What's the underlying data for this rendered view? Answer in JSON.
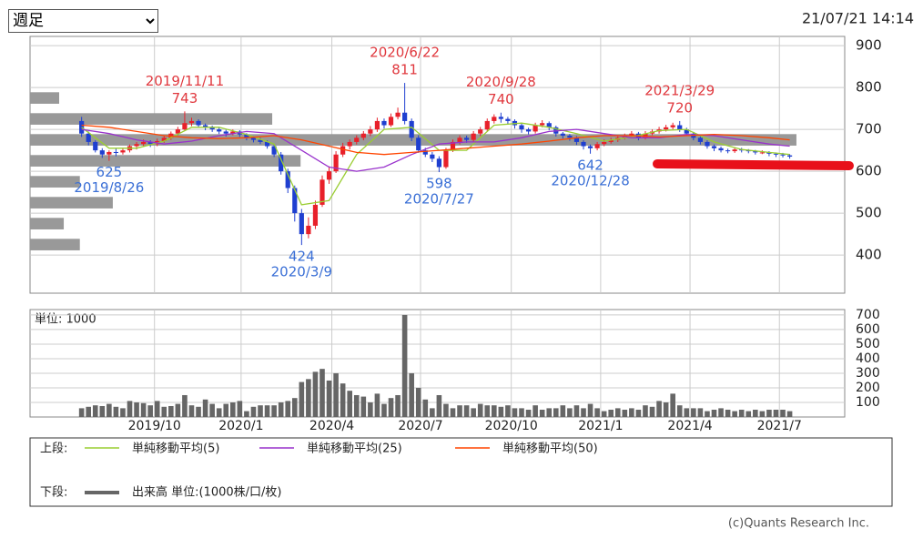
{
  "header": {
    "period": "週足",
    "timestamp": "21/07/21 14:14"
  },
  "chart_data": {
    "type": "candlestick",
    "candles": [
      [
        720,
        730,
        682,
        690
      ],
      [
        690,
        695,
        662,
        670
      ],
      [
        670,
        674,
        645,
        650
      ],
      [
        650,
        655,
        632,
        640
      ],
      [
        640,
        650,
        625,
        646
      ],
      [
        646,
        655,
        636,
        645
      ],
      [
        645,
        656,
        640,
        650
      ],
      [
        650,
        664,
        645,
        660
      ],
      [
        660,
        670,
        652,
        665
      ],
      [
        665,
        676,
        660,
        670
      ],
      [
        670,
        674,
        658,
        665
      ],
      [
        665,
        678,
        660,
        672
      ],
      [
        672,
        686,
        668,
        680
      ],
      [
        680,
        695,
        675,
        690
      ],
      [
        690,
        706,
        686,
        700
      ],
      [
        700,
        743,
        696,
        715
      ],
      [
        715,
        728,
        708,
        720
      ],
      [
        720,
        724,
        704,
        710
      ],
      [
        710,
        714,
        698,
        705
      ],
      [
        705,
        709,
        694,
        700
      ],
      [
        700,
        704,
        689,
        695
      ],
      [
        695,
        699,
        683,
        690
      ],
      [
        690,
        700,
        686,
        695
      ],
      [
        695,
        698,
        682,
        688
      ],
      [
        688,
        691,
        674,
        680
      ],
      [
        680,
        684,
        669,
        675
      ],
      [
        675,
        680,
        665,
        670
      ],
      [
        670,
        674,
        654,
        660
      ],
      [
        660,
        664,
        634,
        640
      ],
      [
        640,
        646,
        592,
        600
      ],
      [
        600,
        606,
        548,
        560
      ],
      [
        560,
        566,
        480,
        500
      ],
      [
        500,
        510,
        424,
        450
      ],
      [
        450,
        490,
        440,
        470
      ],
      [
        470,
        530,
        462,
        520
      ],
      [
        520,
        590,
        515,
        580
      ],
      [
        580,
        612,
        570,
        600
      ],
      [
        600,
        648,
        596,
        640
      ],
      [
        640,
        668,
        634,
        660
      ],
      [
        660,
        676,
        652,
        670
      ],
      [
        670,
        686,
        664,
        680
      ],
      [
        680,
        696,
        674,
        690
      ],
      [
        690,
        708,
        684,
        700
      ],
      [
        700,
        728,
        694,
        720
      ],
      [
        720,
        726,
        702,
        710
      ],
      [
        710,
        738,
        706,
        730
      ],
      [
        730,
        752,
        724,
        740
      ],
      [
        740,
        811,
        712,
        720
      ],
      [
        720,
        726,
        672,
        680
      ],
      [
        680,
        686,
        644,
        650
      ],
      [
        650,
        656,
        634,
        640
      ],
      [
        640,
        646,
        622,
        630
      ],
      [
        630,
        636,
        598,
        610
      ],
      [
        610,
        656,
        606,
        650
      ],
      [
        650,
        676,
        646,
        670
      ],
      [
        670,
        686,
        664,
        680
      ],
      [
        680,
        685,
        668,
        675
      ],
      [
        675,
        696,
        670,
        690
      ],
      [
        690,
        706,
        684,
        700
      ],
      [
        700,
        726,
        696,
        720
      ],
      [
        720,
        736,
        714,
        730
      ],
      [
        730,
        740,
        716,
        725
      ],
      [
        725,
        730,
        712,
        720
      ],
      [
        720,
        724,
        702,
        710
      ],
      [
        710,
        714,
        692,
        700
      ],
      [
        700,
        704,
        688,
        695
      ],
      [
        695,
        716,
        690,
        710
      ],
      [
        710,
        722,
        705,
        715
      ],
      [
        715,
        719,
        698,
        705
      ],
      [
        705,
        709,
        683,
        690
      ],
      [
        690,
        694,
        678,
        685
      ],
      [
        685,
        689,
        673,
        680
      ],
      [
        680,
        684,
        663,
        670
      ],
      [
        670,
        674,
        652,
        660
      ],
      [
        660,
        664,
        642,
        655
      ],
      [
        655,
        670,
        650,
        665
      ],
      [
        665,
        676,
        660,
        670
      ],
      [
        670,
        680,
        666,
        675
      ],
      [
        675,
        686,
        670,
        680
      ],
      [
        680,
        690,
        676,
        685
      ],
      [
        685,
        696,
        680,
        690
      ],
      [
        690,
        694,
        674,
        680
      ],
      [
        680,
        696,
        676,
        690
      ],
      [
        690,
        700,
        686,
        695
      ],
      [
        695,
        706,
        690,
        700
      ],
      [
        700,
        711,
        695,
        705
      ],
      [
        705,
        716,
        700,
        710
      ],
      [
        710,
        720,
        694,
        700
      ],
      [
        700,
        704,
        684,
        690
      ],
      [
        690,
        694,
        674,
        680
      ],
      [
        680,
        684,
        664,
        670
      ],
      [
        670,
        674,
        654,
        660
      ],
      [
        660,
        664,
        648,
        655
      ],
      [
        655,
        659,
        645,
        650
      ],
      [
        650,
        654,
        643,
        648
      ],
      [
        648,
        657,
        644,
        652
      ],
      [
        652,
        656,
        645,
        650
      ],
      [
        650,
        653,
        643,
        648
      ],
      [
        648,
        651,
        640,
        645
      ],
      [
        645,
        650,
        641,
        645
      ],
      [
        645,
        648,
        636,
        642
      ],
      [
        642,
        645,
        634,
        640
      ],
      [
        640,
        644,
        633,
        638
      ],
      [
        638,
        641,
        630,
        635
      ]
    ],
    "up_color": "#e8202a",
    "down_color": "#1f3fd0",
    "xlim": [
      -7.5,
      111
    ],
    "xticks": [
      {
        "value": 10.6,
        "label": "2019/10"
      },
      {
        "value": 23.2,
        "label": "2020/1"
      },
      {
        "value": 36.4,
        "label": "2020/4"
      },
      {
        "value": 49.3,
        "label": "2020/7"
      },
      {
        "value": 62.5,
        "label": "2020/10"
      },
      {
        "value": 75.5,
        "label": "2021/1"
      },
      {
        "value": 88.5,
        "label": "2021/4"
      },
      {
        "value": 101.5,
        "label": "2021/7"
      }
    ],
    "ylim": [
      309,
      922
    ],
    "yticks": [
      400,
      500,
      600,
      700,
      800,
      900
    ],
    "grid": true,
    "series": [
      {
        "name": "単純移動平均(5)",
        "color": "#9acd32",
        "x": [
          0,
          4,
          8,
          12,
          16,
          20,
          24,
          28,
          32,
          36,
          40,
          44,
          48,
          52,
          56,
          60,
          64,
          68,
          72,
          76,
          80,
          84,
          88,
          92,
          96,
          100,
          103
        ],
        "values": [
          705,
          655,
          655,
          672,
          705,
          705,
          688,
          665,
          520,
          530,
          640,
          700,
          705,
          650,
          650,
          710,
          715,
          705,
          690,
          672,
          682,
          697,
          700,
          670,
          652,
          645,
          640
        ]
      },
      {
        "name": "単純移動平均(25)",
        "color": "#9932cc",
        "x": [
          0,
          4,
          8,
          12,
          16,
          20,
          24,
          28,
          32,
          36,
          40,
          44,
          48,
          52,
          56,
          60,
          64,
          68,
          72,
          76,
          80,
          84,
          88,
          92,
          96,
          100,
          103
        ],
        "values": [
          700,
          690,
          675,
          665,
          672,
          685,
          695,
          690,
          650,
          610,
          600,
          610,
          640,
          665,
          670,
          670,
          680,
          695,
          700,
          690,
          680,
          680,
          688,
          685,
          675,
          665,
          660
        ]
      },
      {
        "name": "単純移動平均(50)",
        "color": "#ff4500",
        "x": [
          0,
          4,
          8,
          12,
          16,
          20,
          24,
          28,
          32,
          36,
          40,
          44,
          48,
          52,
          56,
          60,
          64,
          68,
          72,
          76,
          80,
          84,
          88,
          92,
          96,
          100,
          103
        ],
        "values": [
          710,
          705,
          695,
          685,
          680,
          678,
          680,
          685,
          675,
          660,
          645,
          640,
          645,
          650,
          655,
          660,
          665,
          672,
          680,
          685,
          685,
          682,
          685,
          688,
          685,
          680,
          675
        ]
      }
    ],
    "volume": {
      "name": "出来高 単位:(1000株/口/枚)",
      "unit_label": "単位: 1000",
      "color": "#666666",
      "values": [
        60,
        70,
        80,
        75,
        90,
        70,
        60,
        110,
        100,
        95,
        80,
        110,
        70,
        75,
        90,
        150,
        80,
        70,
        120,
        90,
        60,
        90,
        100,
        110,
        40,
        70,
        80,
        80,
        80,
        100,
        110,
        130,
        240,
        260,
        310,
        330,
        250,
        300,
        230,
        180,
        150,
        140,
        100,
        160,
        90,
        130,
        150,
        700,
        300,
        200,
        120,
        60,
        150,
        90,
        60,
        80,
        80,
        60,
        90,
        80,
        80,
        70,
        80,
        60,
        60,
        50,
        80,
        50,
        60,
        60,
        80,
        60,
        80,
        60,
        90,
        60,
        40,
        50,
        60,
        50,
        60,
        50,
        80,
        70,
        110,
        100,
        160,
        80,
        60,
        60,
        60,
        40,
        50,
        60,
        50,
        40,
        50,
        40,
        50,
        40,
        50,
        50,
        50,
        40
      ],
      "ylim": [
        0,
        737
      ],
      "yticks": [
        100,
        200,
        300,
        400,
        500,
        600,
        700
      ]
    },
    "volume_profile": {
      "color": "#999999",
      "prices": [
        775,
        725,
        675,
        625,
        575,
        525,
        475,
        425
      ],
      "values": [
        3.8,
        31.6,
        100,
        35.3,
        6.5,
        10.8,
        4.4,
        6.5
      ],
      "xlim": [
        0,
        106.3
      ]
    },
    "annotations": [
      {
        "date": "2019/11/11",
        "value": 743,
        "position": "above"
      },
      {
        "date": "2020/6/22",
        "value": 811,
        "position": "above"
      },
      {
        "date": "2020/9/28",
        "value": 740,
        "position": "above"
      },
      {
        "date": "2021/3/29",
        "value": 720,
        "position": "above"
      },
      {
        "date": "2019/8/26",
        "value": 625,
        "position": "below"
      },
      {
        "date": "2020/3/9",
        "value": 424,
        "position": "below"
      },
      {
        "date": "2020/7/27",
        "value": 598,
        "position": "below"
      },
      {
        "date": "2020/12/28",
        "value": 642,
        "position": "below"
      }
    ],
    "legend": {
      "upper": "上段:",
      "lower": "下段:"
    }
  },
  "footer": {
    "copyright": "(c)Quants Research Inc."
  }
}
